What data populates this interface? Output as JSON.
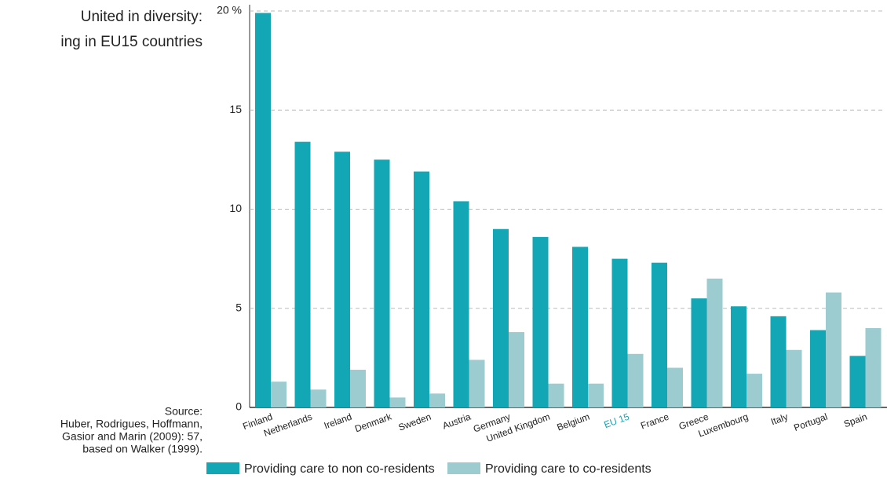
{
  "chart_data": {
    "type": "bar",
    "title_lines": [
      "United in diversity:",
      "ing in EU15 countries"
    ],
    "source_lines": [
      "Source:",
      "Huber, Rodrigues, Hoffmann,",
      "Gasior and Marin (2009): 57,",
      "based on Walker (1999)."
    ],
    "categories": [
      "Finland",
      "Netherlands",
      "Ireland",
      "Denmark",
      "Sweden",
      "Austria",
      "Germany",
      "United Kingdom",
      "Belgium",
      "EU 15",
      "France",
      "Greece",
      "Luxembourg",
      "Italy",
      "Portugal",
      "Spain"
    ],
    "highlighted_category": "EU 15",
    "highlight_color": "#1aa3b2",
    "series": [
      {
        "name": "Providing care to non co-residents",
        "color": "#13a6b4",
        "values": [
          19.9,
          13.4,
          12.9,
          12.5,
          11.9,
          10.4,
          9.0,
          8.6,
          8.1,
          7.5,
          7.3,
          5.5,
          5.1,
          4.6,
          3.9,
          2.6
        ]
      },
      {
        "name": "Providing care to co-residents",
        "color": "#9ccbd0",
        "values": [
          1.3,
          0.9,
          1.9,
          0.5,
          0.7,
          2.4,
          3.8,
          1.2,
          1.2,
          2.7,
          2.0,
          6.5,
          1.7,
          2.9,
          5.8,
          4.0
        ]
      }
    ],
    "ylim": [
      0,
      20
    ],
    "yticks": [
      0,
      5,
      10,
      15,
      {
        "value": 20,
        "label": "20 %"
      }
    ],
    "grid": true
  }
}
